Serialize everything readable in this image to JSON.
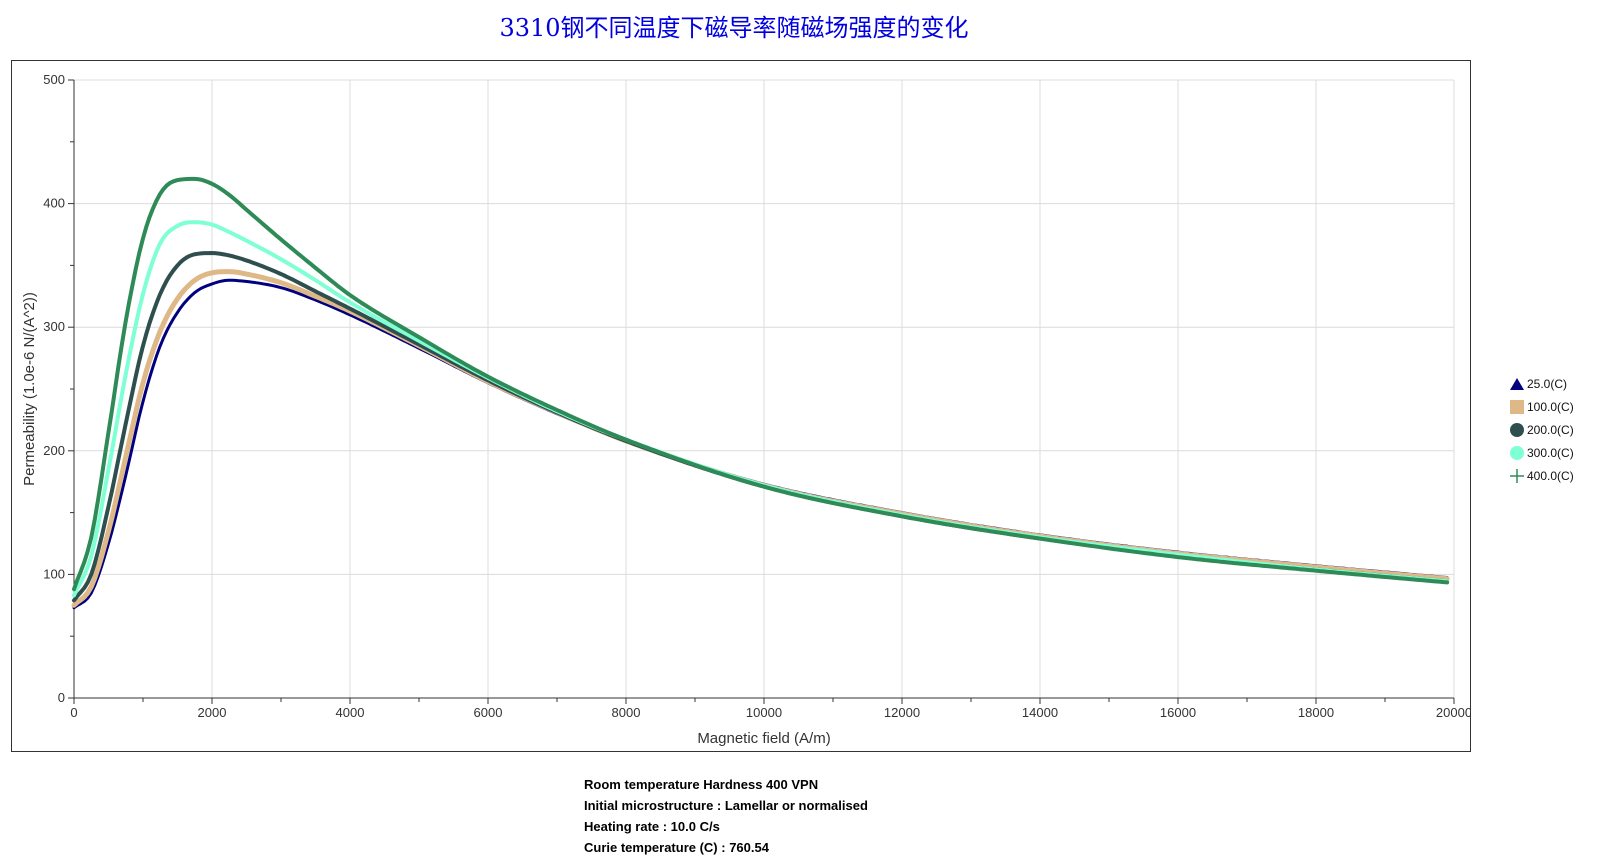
{
  "chart_data": {
    "type": "line",
    "title": "3310钢不同温度下磁导率随磁场强度的变化",
    "xlabel": "Magnetic field (A/m)",
    "ylabel": "Permeability (1.0e-6 N/(A^2))",
    "xlim": [
      0,
      20000
    ],
    "ylim": [
      0,
      500
    ],
    "x_ticks": [
      "0",
      "2000",
      "4000",
      "6000",
      "8000",
      "10000",
      "12000",
      "14000",
      "16000",
      "18000",
      "20000"
    ],
    "y_ticks": [
      "0",
      "100",
      "200",
      "300",
      "400",
      "500"
    ],
    "grid": true,
    "legend_position": "right",
    "x": [
      0,
      250,
      500,
      750,
      1000,
      1250,
      1500,
      1750,
      2000,
      2250,
      2500,
      3000,
      3500,
      4000,
      5000,
      6000,
      7000,
      8000,
      10000,
      12000,
      14000,
      16000,
      18000,
      20000
    ],
    "series": [
      {
        "name": "25.0(C)",
        "color": "#000080",
        "marker": "triangle",
        "values": [
          73,
          85,
          125,
          180,
          240,
          285,
          312,
          328,
          335,
          338,
          337,
          332,
          322,
          310,
          283,
          255,
          230,
          208,
          173,
          150,
          132,
          118,
          107,
          97
        ]
      },
      {
        "name": "100.0(C)",
        "color": "#deb887",
        "marker": "square",
        "values": [
          75,
          90,
          135,
          195,
          255,
          297,
          323,
          338,
          344,
          345,
          343,
          336,
          325,
          313,
          285,
          256,
          231,
          208,
          172,
          149,
          131,
          117,
          106,
          96
        ]
      },
      {
        "name": "200.0(C)",
        "color": "#2f4f4f",
        "marker": "circle",
        "values": [
          79,
          100,
          155,
          222,
          285,
          327,
          350,
          359,
          360,
          358,
          354,
          343,
          329,
          315,
          286,
          257,
          231,
          208,
          171,
          147,
          129,
          115,
          104,
          94
        ]
      },
      {
        "name": "300.0(C)",
        "color": "#7fffd4",
        "marker": "circle",
        "values": [
          83,
          115,
          185,
          262,
          327,
          368,
          382,
          385,
          383,
          377,
          370,
          355,
          338,
          320,
          289,
          259,
          232,
          209,
          172,
          148,
          130,
          116,
          104,
          94
        ]
      },
      {
        "name": "400.0(C)",
        "color": "#2e8b57",
        "marker": "plus",
        "values": [
          88,
          130,
          215,
          305,
          372,
          408,
          419,
          420,
          416,
          407,
          395,
          371,
          348,
          326,
          292,
          260,
          233,
          209,
          171,
          147,
          129,
          114,
          103,
          93
        ]
      }
    ]
  },
  "info": {
    "hardness": "Room temperature Hardness 400 VPN",
    "microstructure": "Initial microstructure : Lamellar or normalised",
    "heating_rate": "Heating rate : 10.0 C/s",
    "curie": "Curie temperature (C) : 760.54"
  }
}
